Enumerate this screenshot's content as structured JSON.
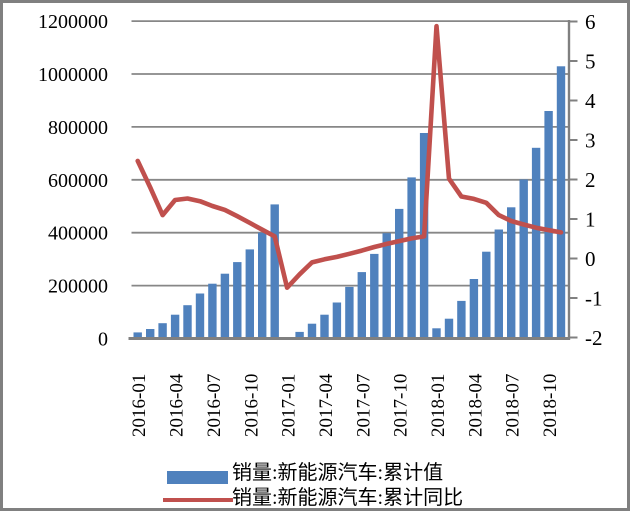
{
  "window": {
    "background": "#ffffff",
    "frame_border_color": "#808080"
  },
  "colors": {
    "bar": "#4F81BD",
    "line": "#C0504D",
    "gridline": "#878787",
    "axis": "#808080",
    "text": "#000000"
  },
  "legend": {
    "position": "bottom",
    "bar_label": "销量:新能源汽车:累计值",
    "line_label": "销量:新能源汽车:累计同比"
  },
  "chart_data": {
    "type": "bar",
    "subtype": "combo-bar-line-dual-axis",
    "title": "",
    "xlabel": "",
    "ylabel_left": "",
    "ylabel_right": "",
    "grid": true,
    "legend_position": "bottom",
    "categories": [
      "2016-01",
      "2016-02",
      "2016-03",
      "2016-04",
      "2016-05",
      "2016-06",
      "2016-07",
      "2016-08",
      "2016-09",
      "2016-10",
      "2016-11",
      "2016-12",
      "2017-01",
      "2017-02",
      "2017-03",
      "2017-04",
      "2017-05",
      "2017-06",
      "2017-07",
      "2017-08",
      "2017-09",
      "2017-10",
      "2017-11",
      "2017-12",
      "2018-01",
      "2018-02",
      "2018-03",
      "2018-04",
      "2018-05",
      "2018-06",
      "2018-07",
      "2018-08",
      "2018-09",
      "2018-10",
      "2018-11"
    ],
    "x_axis": {
      "label_every": 3,
      "shown_tick_labels": [
        "2016-01",
        "2016-04",
        "2016-07",
        "2016-10",
        "2017-01",
        "2017-04",
        "2017-07",
        "2017-10",
        "2018-01",
        "2018-04",
        "2018-07",
        "2018-10"
      ],
      "label_rotation_deg": 90
    },
    "left_axis": {
      "min": 0,
      "max": 1200000,
      "step": 200000,
      "tick_labels": [
        "1200000",
        "1000000",
        "800000",
        "600000",
        "400000",
        "200000",
        "0"
      ]
    },
    "right_axis": {
      "min": -2,
      "max": 6,
      "step": 1,
      "tick_labels": [
        "6",
        "5",
        "4",
        "3",
        "2",
        "1",
        "0",
        "-1",
        "-2"
      ]
    },
    "series": [
      {
        "name": "销量:新能源汽车:累计值",
        "type": "bar",
        "axis": "left",
        "color": "#4F81BD",
        "values": [
          23000,
          36000,
          58000,
          90000,
          126000,
          170000,
          207000,
          245000,
          289000,
          337000,
          400000,
          507000,
          5700,
          25000,
          56000,
          90000,
          136000,
          195000,
          251000,
          320000,
          398000,
          490000,
          609000,
          777000,
          38500,
          75000,
          142000,
          225000,
          328000,
          412000,
          496000,
          601000,
          721000,
          860000,
          1029000
        ]
      },
      {
        "name": "销量:新能源汽车:累计同比",
        "type": "line",
        "axis": "right",
        "color": "#C0504D",
        "values": [
          2.47,
          1.8,
          1.1,
          1.48,
          1.52,
          1.45,
          1.33,
          1.23,
          1.07,
          0.9,
          0.73,
          0.56,
          -0.74,
          -0.4,
          -0.1,
          -0.02,
          0.04,
          0.12,
          0.2,
          0.29,
          0.37,
          0.44,
          0.51,
          0.56,
          5.88,
          2.02,
          1.57,
          1.51,
          1.41,
          1.1,
          0.95,
          0.86,
          0.78,
          0.72,
          0.66
        ]
      }
    ]
  }
}
